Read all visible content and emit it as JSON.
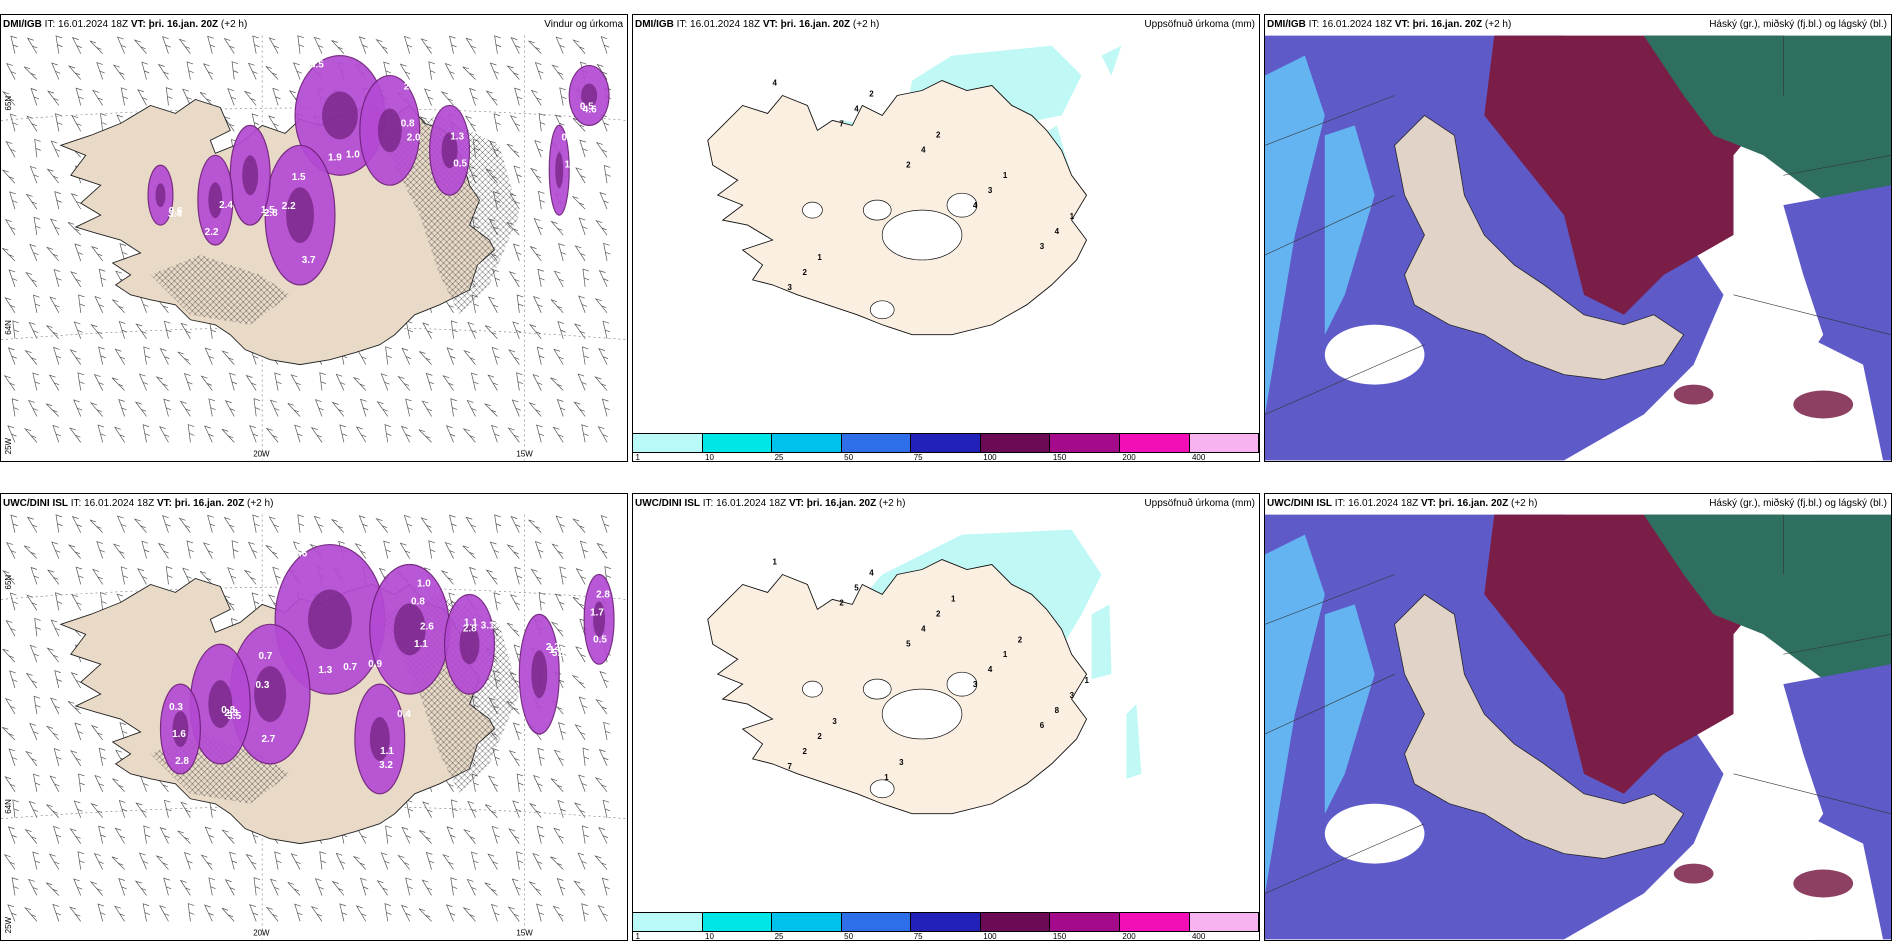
{
  "colors": {
    "land": "#e9dac8",
    "landLight": "#fbefe2",
    "magenta": "#b44ad4",
    "magentaDark": "#6e1f7a",
    "cyan": "#b9f7f4",
    "darkRed": "#7a1e48",
    "blue": "#5e5bc9",
    "lightBlue": "#65b4f2",
    "teal": "#2f6f60"
  },
  "panels": [
    {
      "id": "p1",
      "model": "DMI/IGB",
      "it": "IT: 16.01.2024 18Z",
      "vt": "VT: þri. 16.jan. 20Z",
      "offset": "(+2 h)",
      "right_title": "Vindur og úrkoma",
      "type": "wind",
      "labels": [
        "3.5",
        "2.0",
        "3.7",
        "2.8",
        "2.2",
        "0.5",
        "1.0",
        "4.6",
        "3.4",
        "1.9",
        "2.6",
        "1.5",
        "1.5",
        "2.4",
        "1.3",
        "0.6",
        "0.5",
        "0.6",
        "1.0",
        "0.8",
        "2.2"
      ],
      "axis": {
        "lat1": "65N",
        "lat2": "64N",
        "lat3": "25W",
        "lon1": "20W",
        "lon2": "15W"
      }
    },
    {
      "id": "p2",
      "model": "DMI/IGB",
      "it": "IT: 16.01.2024 18Z",
      "vt": "VT: þri. 16.jan. 20Z",
      "offset": "(+2 h)",
      "right_title": "Uppsöfnuð úrkoma (mm)",
      "type": "precip",
      "labels": [
        "4",
        "7",
        "2",
        "4",
        "3",
        "3",
        "4",
        "4",
        "3",
        "4",
        "2",
        "2",
        "2",
        "1",
        "1",
        "1"
      ]
    },
    {
      "id": "p3",
      "model": "DMI/IGB",
      "it": "IT: 16.01.2024 18Z",
      "vt": "VT: þri. 16.jan. 20Z",
      "offset": "(+2 h)",
      "right_title": "Háský (gr.), miðský (fj.bl.) og lágský (bl.)",
      "type": "cloud"
    },
    {
      "id": "p4",
      "model": "UWC/DINI ISL",
      "it": "IT: 16.01.2024 18Z",
      "vt": "VT: þri. 16.jan. 20Z",
      "offset": "(+2 h)",
      "right_title": "",
      "type": "wind",
      "labels": [
        "0.6",
        "2.6",
        "2.7",
        "3.5",
        "2.8",
        "2.8",
        "5.1",
        "2.8",
        "3.2",
        "1.3",
        "1.0",
        "0.7",
        "2.3",
        "1.6",
        "3.1",
        "1.4",
        "0.5",
        "0.4",
        "0.7",
        "1.1",
        "0.3",
        "0.8",
        "0.3",
        "1.1",
        "2.2",
        "1.7",
        "1.1",
        "0.9",
        "0.8"
      ],
      "axis": {
        "lat1": "65N",
        "lat2": "64N",
        "lat3": "25W",
        "lon1": "20W",
        "lon2": "15W"
      }
    },
    {
      "id": "p5",
      "model": "UWC/DINI ISL",
      "it": "IT: 16.01.2024 18Z",
      "vt": "VT: þri. 16.jan. 20Z",
      "offset": "(+2 h)",
      "right_title": "Uppsöfnuð úrkoma (mm)",
      "type": "precip",
      "labels": [
        "1",
        "2",
        "5",
        "3",
        "6",
        "7",
        "5",
        "4",
        "4",
        "8",
        "2",
        "4",
        "2",
        "1",
        "3",
        "2",
        "1",
        "1",
        "2",
        "1",
        "3",
        "3"
      ]
    },
    {
      "id": "p6",
      "model": "UWC/DINI ISL",
      "it": "IT: 16.01.2024 18Z",
      "vt": "VT: þri. 16.jan. 20Z",
      "offset": "(+2 h)",
      "right_title": "Háský (gr.), miðský (fj.bl.) og lágský (bl.)",
      "type": "cloud"
    }
  ],
  "colorbar": {
    "colors": [
      "#b9f9f7",
      "#00e6e6",
      "#00c0ec",
      "#2e6ee8",
      "#2222b8",
      "#6b0b55",
      "#a30b8a",
      "#f20fb8",
      "#f6b3f0"
    ],
    "ticks": [
      "1",
      "10",
      "25",
      "50",
      "75",
      "100",
      "150",
      "200",
      "400"
    ]
  }
}
